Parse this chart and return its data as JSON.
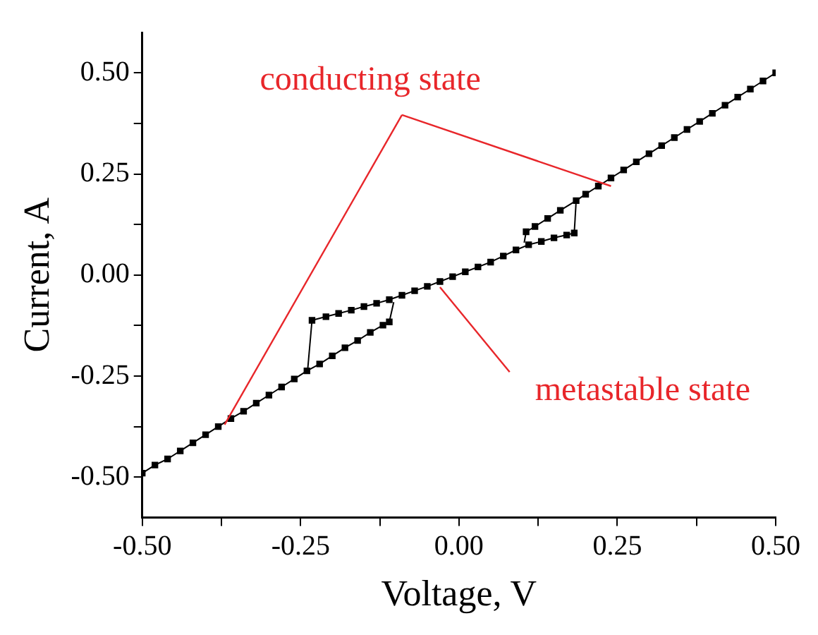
{
  "chart_data": {
    "type": "line",
    "xlabel": "Voltage, V",
    "ylabel": "Current, A",
    "xlim": [
      -0.5,
      0.5
    ],
    "ylim": [
      -0.6,
      0.6
    ],
    "xticks": [
      {
        "value": -0.5,
        "label": "-0.50"
      },
      {
        "value": -0.375,
        "label": null
      },
      {
        "value": -0.25,
        "label": "-0.25"
      },
      {
        "value": -0.125,
        "label": null
      },
      {
        "value": 0,
        "label": "0.00"
      },
      {
        "value": 0.125,
        "label": null
      },
      {
        "value": 0.25,
        "label": "0.25"
      },
      {
        "value": 0.375,
        "label": null
      },
      {
        "value": 0.5,
        "label": "0.50"
      }
    ],
    "yticks": [
      {
        "value": -0.5,
        "label": "-0.50"
      },
      {
        "value": -0.375,
        "label": null
      },
      {
        "value": -0.25,
        "label": "-0.25"
      },
      {
        "value": -0.125,
        "label": null
      },
      {
        "value": 0,
        "label": "0.00"
      },
      {
        "value": 0.125,
        "label": null
      },
      {
        "value": 0.25,
        "label": "0.25"
      },
      {
        "value": 0.375,
        "label": null
      },
      {
        "value": 0.5,
        "label": "0.50"
      }
    ],
    "grid": false,
    "legend": false,
    "marker": "square",
    "line_style": "solid",
    "series": [
      {
        "color": "#000000",
        "x": [
          -0.5,
          -0.48,
          -0.46,
          -0.44,
          -0.42,
          -0.4,
          -0.38,
          -0.36,
          -0.34,
          -0.32,
          -0.3,
          -0.28,
          -0.26,
          -0.24,
          -0.22,
          -0.2,
          -0.18,
          -0.16,
          -0.14,
          -0.12,
          -0.11
        ],
        "values": [
          -0.49,
          -0.47,
          -0.455,
          -0.435,
          -0.415,
          -0.395,
          -0.375,
          -0.355,
          -0.337,
          -0.317,
          -0.297,
          -0.277,
          -0.257,
          -0.237,
          -0.22,
          -0.2,
          -0.18,
          -0.162,
          -0.142,
          -0.124,
          -0.116
        ]
      },
      {
        "color": "#000000",
        "x": [
          -0.232,
          -0.21,
          -0.19,
          -0.17,
          -0.15,
          -0.13,
          -0.11,
          -0.09,
          -0.07,
          -0.05,
          -0.03,
          -0.01,
          0.01,
          0.03,
          0.05,
          0.07,
          0.09,
          0.11,
          0.13,
          0.15,
          0.17,
          0.182
        ],
        "values": [
          -0.112,
          -0.103,
          -0.095,
          -0.087,
          -0.078,
          -0.07,
          -0.061,
          -0.05,
          -0.039,
          -0.028,
          -0.016,
          -0.004,
          0.008,
          0.02,
          0.032,
          0.047,
          0.062,
          0.075,
          0.083,
          0.092,
          0.099,
          0.104
        ]
      },
      {
        "color": "#000000",
        "x": [
          0.106,
          0.12,
          0.14,
          0.16,
          0.185,
          0.2,
          0.22,
          0.24,
          0.26,
          0.28,
          0.3,
          0.32,
          0.34,
          0.36,
          0.38,
          0.4,
          0.42,
          0.44,
          0.46,
          0.48,
          0.5
        ],
        "values": [
          0.107,
          0.12,
          0.14,
          0.16,
          0.184,
          0.2,
          0.22,
          0.24,
          0.26,
          0.28,
          0.3,
          0.32,
          0.34,
          0.36,
          0.38,
          0.4,
          0.42,
          0.44,
          0.46,
          0.48,
          0.5
        ]
      },
      {
        "color": "#000000",
        "marker": "none",
        "x": [
          -0.11,
          -0.103
        ],
        "values": [
          -0.116,
          -0.067
        ]
      },
      {
        "color": "#000000",
        "marker": "none",
        "x": [
          -0.232,
          -0.239
        ],
        "values": [
          -0.112,
          -0.237
        ]
      },
      {
        "color": "#000000",
        "marker": "none",
        "x": [
          0.182,
          0.185
        ],
        "values": [
          0.104,
          0.184
        ]
      },
      {
        "color": "#000000",
        "marker": "none",
        "x": [
          0.106,
          0.103
        ],
        "values": [
          0.107,
          0.08
        ]
      }
    ],
    "annotations": [
      {
        "text": "conducting state",
        "x": -0.37,
        "y": -0.37
      },
      {
        "text": "metastable state",
        "x": -0.03,
        "y": -0.03
      }
    ]
  }
}
